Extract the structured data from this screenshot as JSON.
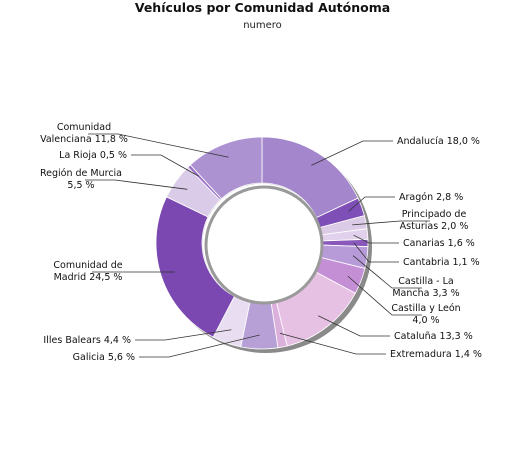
{
  "chart_data": {
    "type": "pie",
    "style": "donut",
    "title": "Vehículos por Comunidad Autónoma",
    "subtitle": "numero",
    "unit": "%",
    "slices": [
      {
        "name": "Andalucía",
        "value": 18.0,
        "label": "Andalucía 18,0 %",
        "color": "#a486cc"
      },
      {
        "name": "Aragón",
        "value": 2.8,
        "label": "Aragón 2,8 %",
        "color": "#7f4fb8"
      },
      {
        "name": "Principado de Asturias",
        "value": 2.0,
        "label": "Principado de Asturias 2,0 %",
        "color": "#dccbe6"
      },
      {
        "name": "Canarias",
        "value": 1.6,
        "label": "Canarias 1,6 %",
        "color": "#e2d1ec"
      },
      {
        "name": "Cantabria",
        "value": 1.1,
        "label": "Cantabria 1,1 %",
        "color": "#8a58bb"
      },
      {
        "name": "Castilla - La Mancha",
        "value": 3.3,
        "label": "Castilla - La Mancha 3,3 %",
        "color": "#b79ad8"
      },
      {
        "name": "Castilla y León",
        "value": 4.0,
        "label": "Castilla y León 4,0 %",
        "color": "#c58fd5"
      },
      {
        "name": "Cataluña",
        "value": 13.3,
        "label": "Cataluña 13,3 %",
        "color": "#e6c1e4"
      },
      {
        "name": "Extremadura",
        "value": 1.4,
        "label": "Extremadura 1,4 %",
        "color": "#dcb0dc"
      },
      {
        "name": "Galicia",
        "value": 5.6,
        "label": "Galicia 5,6 %",
        "color": "#b6a0d6"
      },
      {
        "name": "Illes Balears",
        "value": 4.4,
        "label": "Illes Balears 4,4 %",
        "color": "#e9def1"
      },
      {
        "name": "Comunidad de Madrid",
        "value": 24.5,
        "label": "Comunidad de Madrid 24,5 %",
        "color": "#7a48b0"
      },
      {
        "name": "Región de Murcia",
        "value": 5.5,
        "label": "Región de Murcia 5,5 %",
        "color": "#dacbe8"
      },
      {
        "name": "La Rioja",
        "value": 0.5,
        "label": "La Rioja 0,5 %",
        "color": "#9a6fc5"
      },
      {
        "name": "Comunidad Valenciana",
        "value": 11.8,
        "label": "Comunidad Valenciana 11,8 %",
        "color": "#ad92d2"
      }
    ],
    "legend": "none"
  }
}
